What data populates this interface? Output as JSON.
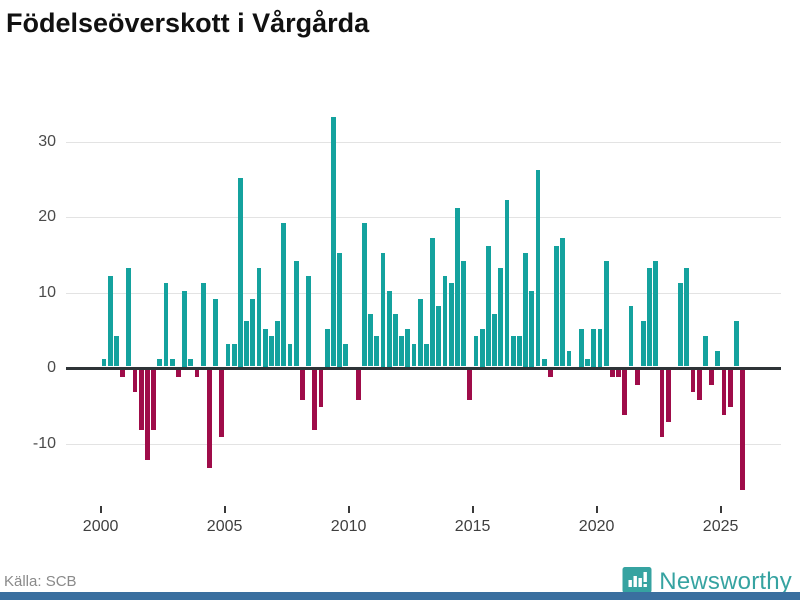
{
  "title": "Födelseöverskott i Vårgårda",
  "source": "Källa: SCB",
  "brand": {
    "name": "Newsworthy"
  },
  "colors": {
    "positive": "#14a29e",
    "negative": "#9f0c49",
    "axis": "#2f3437",
    "grid": "#e3e3e3",
    "brand_teal": "#36a3a1",
    "footer_bar": "#3a6f9f"
  },
  "chart_data": {
    "type": "bar",
    "title": "Födelseöverskott i Vårgårda",
    "frequency": "quarterly",
    "x_start_year": 2000,
    "x_tick_years": [
      2000,
      2005,
      2010,
      2015,
      2020,
      2025
    ],
    "y_ticks": [
      30,
      20,
      10,
      0,
      -10
    ],
    "ylim": [
      -17,
      35
    ],
    "grid": "horizontal",
    "legend": "none",
    "xlabel": "",
    "ylabel": "",
    "series": [
      {
        "name": "Födelseöverskott",
        "years": [
          {
            "year": 2000,
            "values": [
              1,
              12,
              4,
              -1
            ]
          },
          {
            "year": 2001,
            "values": [
              13,
              -3,
              -8,
              -12
            ]
          },
          {
            "year": 2002,
            "values": [
              -8,
              1,
              11,
              1
            ]
          },
          {
            "year": 2003,
            "values": [
              -1,
              10,
              1,
              -1
            ]
          },
          {
            "year": 2004,
            "values": [
              11,
              -13,
              9,
              -9
            ]
          },
          {
            "year": 2005,
            "values": [
              3,
              3,
              25,
              6
            ]
          },
          {
            "year": 2006,
            "values": [
              9,
              13,
              5,
              4
            ]
          },
          {
            "year": 2007,
            "values": [
              6,
              19,
              3,
              14
            ]
          },
          {
            "year": 2008,
            "values": [
              -4,
              12,
              -8,
              -5
            ]
          },
          {
            "year": 2009,
            "values": [
              5,
              33,
              15,
              3
            ]
          },
          {
            "year": 2010,
            "values": [
              0,
              -4,
              19,
              7
            ]
          },
          {
            "year": 2011,
            "values": [
              4,
              15,
              10,
              7
            ]
          },
          {
            "year": 2012,
            "values": [
              4,
              5,
              3,
              9
            ]
          },
          {
            "year": 2013,
            "values": [
              3,
              17,
              8,
              12
            ]
          },
          {
            "year": 2014,
            "values": [
              11,
              21,
              14,
              -4
            ]
          },
          {
            "year": 2015,
            "values": [
              4,
              5,
              16,
              7
            ]
          },
          {
            "year": 2016,
            "values": [
              13,
              22,
              4,
              4
            ]
          },
          {
            "year": 2017,
            "values": [
              15,
              10,
              26,
              1
            ]
          },
          {
            "year": 2018,
            "values": [
              -1,
              16,
              17,
              2
            ]
          },
          {
            "year": 2019,
            "values": [
              0,
              5,
              1,
              5
            ]
          },
          {
            "year": 2020,
            "values": [
              5,
              14,
              -1,
              -1
            ]
          },
          {
            "year": 2021,
            "values": [
              -6,
              8,
              -2,
              6
            ]
          },
          {
            "year": 2022,
            "values": [
              13,
              14,
              -9,
              -7
            ]
          },
          {
            "year": 2023,
            "values": [
              0,
              11,
              13,
              -3
            ]
          },
          {
            "year": 2024,
            "values": [
              -4,
              4,
              -2,
              2
            ]
          },
          {
            "year": 2025,
            "values": [
              -6,
              -5,
              6,
              -16
            ]
          }
        ]
      }
    ]
  }
}
